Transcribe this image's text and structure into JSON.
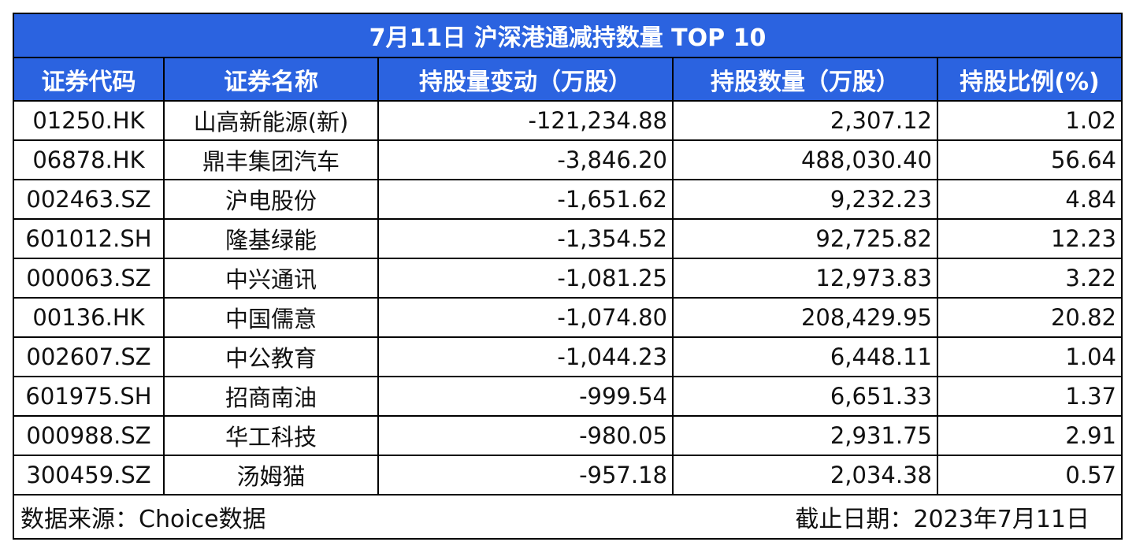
{
  "title": "7月11日 沪深港通减持数量 TOP 10",
  "columns": [
    "证券代码",
    "证券名称",
    "持股量变动（万股）",
    "持股数量（万股）",
    "持股比例(%)"
  ],
  "chart_data": {
    "type": "table",
    "title": "7月11日 沪深港通减持数量 TOP 10",
    "columns": [
      "证券代码",
      "证券名称",
      "持股量变动（万股）",
      "持股数量（万股）",
      "持股比例(%)"
    ],
    "rows": [
      {
        "code": "01250.HK",
        "name": "山高新能源(新)",
        "change": "-121,234.88",
        "holding": "2,307.12",
        "ratio": "1.02"
      },
      {
        "code": "06878.HK",
        "name": "鼎丰集团汽车",
        "change": "-3,846.20",
        "holding": "488,030.40",
        "ratio": "56.64"
      },
      {
        "code": "002463.SZ",
        "name": "沪电股份",
        "change": "-1,651.62",
        "holding": "9,232.23",
        "ratio": "4.84"
      },
      {
        "code": "601012.SH",
        "name": "隆基绿能",
        "change": "-1,354.52",
        "holding": "92,725.82",
        "ratio": "12.23"
      },
      {
        "code": "000063.SZ",
        "name": "中兴通讯",
        "change": "-1,081.25",
        "holding": "12,973.83",
        "ratio": "3.22"
      },
      {
        "code": "00136.HK",
        "name": "中国儒意",
        "change": "-1,074.80",
        "holding": "208,429.95",
        "ratio": "20.82"
      },
      {
        "code": "002607.SZ",
        "name": "中公教育",
        "change": "-1,044.23",
        "holding": "6,448.11",
        "ratio": "1.04"
      },
      {
        "code": "601975.SH",
        "name": "招商南油",
        "change": "-999.54",
        "holding": "6,651.33",
        "ratio": "1.37"
      },
      {
        "code": "000988.SZ",
        "name": "华工科技",
        "change": "-980.05",
        "holding": "2,931.75",
        "ratio": "2.91"
      },
      {
        "code": "300459.SZ",
        "name": "汤姆猫",
        "change": "-957.18",
        "holding": "2,034.38",
        "ratio": "0.57"
      }
    ]
  },
  "footer": {
    "source": "数据来源：Choice数据",
    "date": "截止日期：2023年7月11日"
  },
  "colors": {
    "header_bg": "#2b63e0",
    "header_text": "#ffffff",
    "change_text": "#5a8a2e"
  }
}
